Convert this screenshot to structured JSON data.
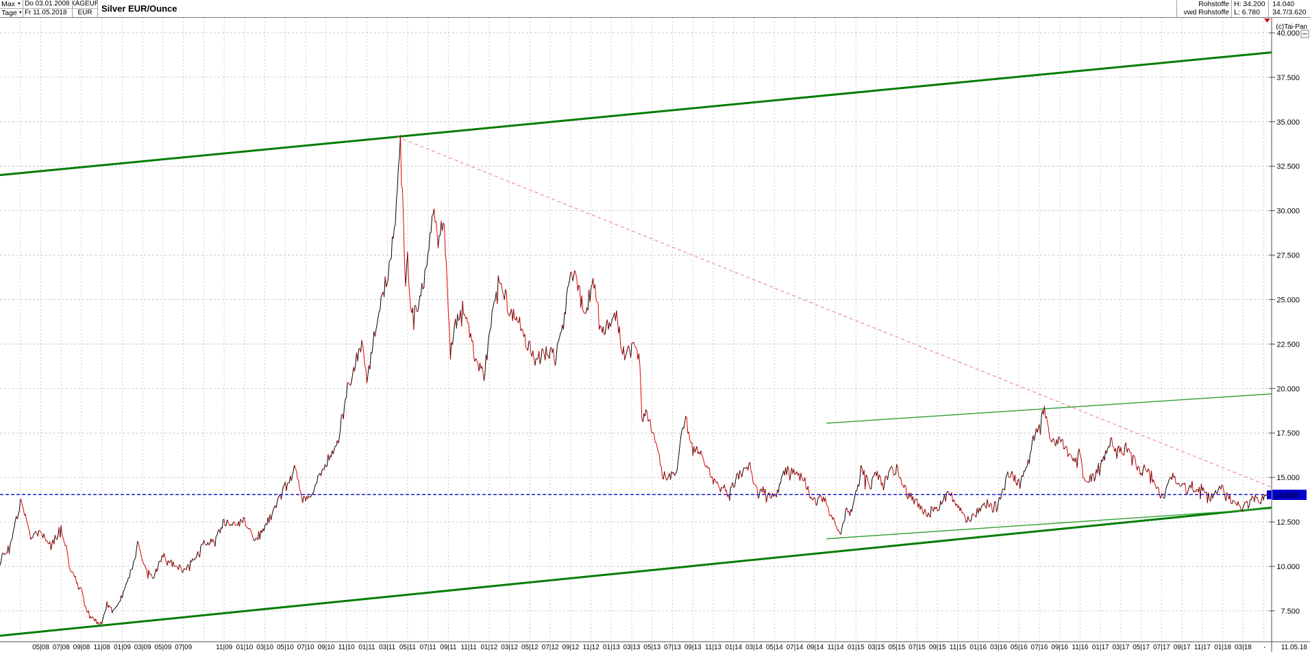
{
  "header": {
    "left": {
      "range_dropdown": "Max",
      "period_dropdown": "Tage",
      "date_from": "Do 03.01.2008",
      "date_to": "Fr 11.05.2018",
      "symbol": "XAGEUR",
      "currency": "EUR",
      "title": "Silver EUR/Ounce"
    },
    "right": {
      "category": "Rohstoffe",
      "source": "vwd Rohstoffe",
      "high_label": "H: 34.200",
      "low_label": "L: 6.780",
      "last": "14.040",
      "range_summary": "34.7/3.620"
    }
  },
  "icons": {
    "dropdown_arrow": "▼"
  },
  "axis_area": {
    "copyright_label": "(c)Tai-Pan",
    "price_badge": "14.040",
    "separator_label": "-",
    "end_date_label": "11.05.18",
    "badge_color": "#0000cc"
  },
  "colors": {
    "grid": "#c9c9c9",
    "axis": "#4d4d4d",
    "price_up": "#000000",
    "price_down": "#dd0000",
    "channel": "#007c00",
    "inner_line": "#2f9e2f",
    "downtrend": "#f29c9c",
    "last_price": "#0000cc",
    "marker_red": "#cc1111"
  },
  "chart_data": {
    "type": "line",
    "title": "Silver EUR/Ounce",
    "symbol": "XAGEUR",
    "currency": "EUR",
    "x_range": [
      "03.01.2008",
      "11.05.2018"
    ],
    "high": 34.2,
    "low": 6.78,
    "last": 14.04,
    "grid": {
      "x_every_months": 2,
      "y_every": 2.5,
      "style": "dashed"
    },
    "ylim_visible": [
      5.9,
      40.9
    ],
    "y_ticks": [
      {
        "label": "40.000",
        "value": 40.0
      },
      {
        "label": "37.500",
        "value": 37.5
      },
      {
        "label": "35.000",
        "value": 35.0
      },
      {
        "label": "32.500",
        "value": 32.5
      },
      {
        "label": "30.000",
        "value": 30.0
      },
      {
        "label": "27.500",
        "value": 27.5
      },
      {
        "label": "25.000",
        "value": 25.0
      },
      {
        "label": "22.500",
        "value": 22.5
      },
      {
        "label": "20.000",
        "value": 20.0
      },
      {
        "label": "17.500",
        "value": 17.5
      },
      {
        "label": "15.000",
        "value": 15.0
      },
      {
        "label": "12.500",
        "value": 12.5
      },
      {
        "label": "10.000",
        "value": 10.0
      },
      {
        "label": "7.500",
        "value": 7.5
      }
    ],
    "x_ticks": [
      {
        "label": "05|08",
        "month": 4
      },
      {
        "label": "07|08",
        "month": 6
      },
      {
        "label": "09|08",
        "month": 8
      },
      {
        "label": "11|08",
        "month": 10
      },
      {
        "label": "01|09",
        "month": 12
      },
      {
        "label": "03|09",
        "month": 14
      },
      {
        "label": "05|09",
        "month": 16
      },
      {
        "label": "07|09",
        "month": 18
      },
      {
        "label": "11|09",
        "month": 22
      },
      {
        "label": "01|10",
        "month": 24
      },
      {
        "label": "03|10",
        "month": 26
      },
      {
        "label": "05|10",
        "month": 28
      },
      {
        "label": "07|10",
        "month": 30
      },
      {
        "label": "09|10",
        "month": 32
      },
      {
        "label": "11|10",
        "month": 34
      },
      {
        "label": "01|11",
        "month": 36
      },
      {
        "label": "03|11",
        "month": 38
      },
      {
        "label": "05|11",
        "month": 40
      },
      {
        "label": "07|11",
        "month": 42
      },
      {
        "label": "09|11",
        "month": 44
      },
      {
        "label": "11|11",
        "month": 46
      },
      {
        "label": "01|12",
        "month": 48
      },
      {
        "label": "03|12",
        "month": 50
      },
      {
        "label": "05|12",
        "month": 52
      },
      {
        "label": "07|12",
        "month": 54
      },
      {
        "label": "09|12",
        "month": 56
      },
      {
        "label": "11|12",
        "month": 58
      },
      {
        "label": "01|13",
        "month": 60
      },
      {
        "label": "03|13",
        "month": 62
      },
      {
        "label": "05|13",
        "month": 64
      },
      {
        "label": "07|13",
        "month": 66
      },
      {
        "label": "09|13",
        "month": 68
      },
      {
        "label": "11|13",
        "month": 70
      },
      {
        "label": "01|14",
        "month": 72
      },
      {
        "label": "03|14",
        "month": 74
      },
      {
        "label": "05|14",
        "month": 76
      },
      {
        "label": "07|14",
        "month": 78
      },
      {
        "label": "09|14",
        "month": 80
      },
      {
        "label": "11|14",
        "month": 82
      },
      {
        "label": "01|15",
        "month": 84
      },
      {
        "label": "03|15",
        "month": 86
      },
      {
        "label": "05|15",
        "month": 88
      },
      {
        "label": "07|15",
        "month": 90
      },
      {
        "label": "09|15",
        "month": 92
      },
      {
        "label": "11|15",
        "month": 94
      },
      {
        "label": "01|16",
        "month": 96
      },
      {
        "label": "03|16",
        "month": 98
      },
      {
        "label": "05|16",
        "month": 100
      },
      {
        "label": "07|16",
        "month": 102
      },
      {
        "label": "09|16",
        "month": 104
      },
      {
        "label": "11|16",
        "month": 106
      },
      {
        "label": "01|17",
        "month": 108
      },
      {
        "label": "03|17",
        "month": 110
      },
      {
        "label": "05|17",
        "month": 112
      },
      {
        "label": "07|17",
        "month": 114
      },
      {
        "label": "09|17",
        "month": 116
      },
      {
        "label": "11|17",
        "month": 118
      },
      {
        "label": "01|18",
        "month": 120
      },
      {
        "label": "03|18",
        "month": 122
      }
    ],
    "series": {
      "name": "XAGEUR daily (EUR/oz) - monthly keypoints, months since Jan 2008",
      "keypoints": [
        [
          0,
          10.3
        ],
        [
          1,
          11.2
        ],
        [
          2,
          13.6
        ],
        [
          2.3,
          13.2
        ],
        [
          3,
          11.6
        ],
        [
          4,
          11.9
        ],
        [
          5,
          11.1
        ],
        [
          6,
          12.2
        ],
        [
          6.5,
          11.0
        ],
        [
          7,
          9.6
        ],
        [
          8,
          8.8
        ],
        [
          8.5,
          7.6
        ],
        [
          9,
          7.1
        ],
        [
          9.5,
          6.9
        ],
        [
          10,
          6.8
        ],
        [
          10.5,
          7.9
        ],
        [
          11,
          7.5
        ],
        [
          12,
          8.3
        ],
        [
          13,
          10.0
        ],
        [
          13.5,
          11.3
        ],
        [
          14,
          10.3
        ],
        [
          15,
          9.3
        ],
        [
          16,
          10.6
        ],
        [
          17,
          10.1
        ],
        [
          18,
          9.8
        ],
        [
          19,
          10.4
        ],
        [
          20,
          11.3
        ],
        [
          21,
          11.4
        ],
        [
          22,
          12.5
        ],
        [
          23,
          12.3
        ],
        [
          24,
          12.6
        ],
        [
          25,
          11.4
        ],
        [
          26,
          12.3
        ],
        [
          27,
          13.2
        ],
        [
          28,
          14.6
        ],
        [
          29,
          15.5
        ],
        [
          29.5,
          14.0
        ],
        [
          30,
          13.6
        ],
        [
          31,
          14.7
        ],
        [
          32,
          15.9
        ],
        [
          33,
          16.5
        ],
        [
          34,
          19.8
        ],
        [
          35,
          21.8
        ],
        [
          35.5,
          22.5
        ],
        [
          36,
          20.5
        ],
        [
          37,
          23.8
        ],
        [
          38,
          26.3
        ],
        [
          38.5,
          28.0
        ],
        [
          39,
          30.8
        ],
        [
          39.3,
          34.2
        ],
        [
          39.5,
          31.0
        ],
        [
          39.8,
          26.0
        ],
        [
          40,
          27.5
        ],
        [
          40.3,
          24.6
        ],
        [
          41,
          24.3
        ],
        [
          41.5,
          25.8
        ],
        [
          42,
          27.6
        ],
        [
          42.5,
          30.2
        ],
        [
          43,
          28.6
        ],
        [
          43.5,
          29.6
        ],
        [
          43.8,
          27.0
        ],
        [
          44.2,
          21.9
        ],
        [
          44.5,
          23.2
        ],
        [
          45,
          23.9
        ],
        [
          45.5,
          24.6
        ],
        [
          46,
          23.3
        ],
        [
          46.5,
          22.0
        ],
        [
          47,
          21.2
        ],
        [
          47.5,
          20.8
        ],
        [
          48,
          22.6
        ],
        [
          48.5,
          24.8
        ],
        [
          49,
          26.2
        ],
        [
          49.5,
          25.4
        ],
        [
          50,
          24.3
        ],
        [
          51,
          23.8
        ],
        [
          51.5,
          22.8
        ],
        [
          52,
          22.4
        ],
        [
          52.5,
          21.6
        ],
        [
          53,
          21.7
        ],
        [
          54,
          22.3
        ],
        [
          54.5,
          21.8
        ],
        [
          55,
          23.2
        ],
        [
          55.5,
          24.6
        ],
        [
          56,
          26.7
        ],
        [
          56.5,
          26.0
        ],
        [
          57,
          25.1
        ],
        [
          57.5,
          24.3
        ],
        [
          58,
          25.9
        ],
        [
          58.5,
          25.4
        ],
        [
          59,
          23.3
        ],
        [
          59.5,
          23.6
        ],
        [
          60,
          23.8
        ],
        [
          60.5,
          24.2
        ],
        [
          61,
          22.3
        ],
        [
          61.5,
          21.8
        ],
        [
          62,
          22.5
        ],
        [
          62.7,
          21.9
        ],
        [
          63.1,
          18.3
        ],
        [
          63.5,
          18.6
        ],
        [
          64,
          17.6
        ],
        [
          64.5,
          17.0
        ],
        [
          65,
          15.2
        ],
        [
          65.5,
          14.9
        ],
        [
          66,
          15.2
        ],
        [
          66.5,
          15.5
        ],
        [
          67,
          17.9
        ],
        [
          67.3,
          18.4
        ],
        [
          68,
          16.4
        ],
        [
          68.5,
          16.6
        ],
        [
          69,
          16.3
        ],
        [
          69.5,
          15.4
        ],
        [
          70,
          14.9
        ],
        [
          71,
          14.4
        ],
        [
          71.5,
          14.1
        ],
        [
          72,
          14.7
        ],
        [
          73,
          15.6
        ],
        [
          73.5,
          15.9
        ],
        [
          74,
          14.7
        ],
        [
          74.5,
          14.4
        ],
        [
          75,
          14.2
        ],
        [
          75.5,
          13.9
        ],
        [
          76,
          14.0
        ],
        [
          76.5,
          14.6
        ],
        [
          77,
          15.5
        ],
        [
          77.5,
          15.3
        ],
        [
          78,
          15.4
        ],
        [
          78.5,
          15.0
        ],
        [
          79,
          14.9
        ],
        [
          79.5,
          14.0
        ],
        [
          80,
          13.6
        ],
        [
          80.5,
          13.9
        ],
        [
          81,
          13.8
        ],
        [
          81.5,
          12.9
        ],
        [
          82,
          12.5
        ],
        [
          82.5,
          11.7
        ],
        [
          83,
          13.1
        ],
        [
          83.5,
          13.0
        ],
        [
          84,
          14.4
        ],
        [
          84.5,
          15.5
        ],
        [
          85,
          14.9
        ],
        [
          85.5,
          14.6
        ],
        [
          86,
          15.2
        ],
        [
          86.5,
          14.8
        ],
        [
          87,
          15.0
        ],
        [
          87.5,
          15.4
        ],
        [
          88,
          15.5
        ],
        [
          88.5,
          14.7
        ],
        [
          89,
          14.1
        ],
        [
          89.5,
          13.8
        ],
        [
          90,
          13.6
        ],
        [
          90.5,
          13.2
        ],
        [
          91,
          12.9
        ],
        [
          91.5,
          13.3
        ],
        [
          92,
          13.2
        ],
        [
          92.5,
          13.6
        ],
        [
          93,
          14.2
        ],
        [
          93.5,
          13.8
        ],
        [
          94,
          13.3
        ],
        [
          94.5,
          12.9
        ],
        [
          95,
          12.6
        ],
        [
          95.5,
          12.8
        ],
        [
          96,
          13.1
        ],
        [
          96.5,
          13.4
        ],
        [
          97,
          13.6
        ],
        [
          97.5,
          13.3
        ],
        [
          98,
          13.6
        ],
        [
          98.5,
          14.3
        ],
        [
          99,
          15.3
        ],
        [
          99.5,
          15.0
        ],
        [
          100,
          14.7
        ],
        [
          100.5,
          15.3
        ],
        [
          101,
          16.0
        ],
        [
          101.5,
          17.3
        ],
        [
          102,
          17.9
        ],
        [
          102.5,
          18.8
        ],
        [
          103,
          17.3
        ],
        [
          103.5,
          16.9
        ],
        [
          104,
          17.2
        ],
        [
          104.5,
          16.8
        ],
        [
          105,
          16.2
        ],
        [
          105.5,
          15.9
        ],
        [
          106,
          16.4
        ],
        [
          106.3,
          15.1
        ],
        [
          107,
          14.9
        ],
        [
          107.5,
          15.1
        ],
        [
          108,
          15.8
        ],
        [
          108.5,
          16.3
        ],
        [
          109,
          17.1
        ],
        [
          109.5,
          16.6
        ],
        [
          110,
          16.4
        ],
        [
          110.5,
          16.8
        ],
        [
          111,
          16.3
        ],
        [
          111.5,
          15.8
        ],
        [
          112,
          15.3
        ],
        [
          112.5,
          15.6
        ],
        [
          113,
          15.1
        ],
        [
          113.5,
          14.5
        ],
        [
          114,
          13.9
        ],
        [
          114.5,
          14.3
        ],
        [
          115,
          15.1
        ],
        [
          115.5,
          14.9
        ],
        [
          116,
          14.6
        ],
        [
          116.5,
          14.3
        ],
        [
          117,
          14.6
        ],
        [
          117.5,
          14.3
        ],
        [
          118,
          14.4
        ],
        [
          118.5,
          14.0
        ],
        [
          119,
          13.8
        ],
        [
          119.5,
          14.3
        ],
        [
          120,
          14.4
        ],
        [
          120.5,
          13.9
        ],
        [
          121,
          13.6
        ],
        [
          121.5,
          13.4
        ],
        [
          122,
          13.3
        ],
        [
          122.5,
          13.6
        ],
        [
          123,
          13.9
        ],
        [
          123.5,
          13.6
        ],
        [
          124,
          13.8
        ],
        [
          124.3,
          14.04
        ]
      ]
    },
    "trendlines": [
      {
        "name": "channel-top",
        "color": "#007c00",
        "width": 3,
        "dash": null,
        "from": [
          0,
          32.0
        ],
        "to": [
          124.8,
          38.9
        ]
      },
      {
        "name": "channel-bottom",
        "color": "#007c00",
        "width": 3,
        "dash": null,
        "from": [
          0,
          6.1
        ],
        "to": [
          124.8,
          13.3
        ]
      },
      {
        "name": "inner-resistance",
        "color": "#2f9e2f",
        "width": 1.4,
        "dash": null,
        "from": [
          81.1,
          18.05
        ],
        "to": [
          124.8,
          19.7
        ]
      },
      {
        "name": "inner-support",
        "color": "#2f9e2f",
        "width": 1.4,
        "dash": null,
        "from": [
          81.1,
          11.55
        ],
        "to": [
          124.8,
          13.25
        ]
      },
      {
        "name": "downtrend-from-peak",
        "color": "#f29c9c",
        "width": 1.4,
        "dash": "5,4",
        "from": [
          39.0,
          34.15
        ],
        "to": [
          124.8,
          14.45
        ]
      },
      {
        "name": "last-price-line",
        "color": "#0000cc",
        "width": 1.4,
        "dash": "5,3",
        "from": [
          0,
          14.04
        ],
        "to": [
          124.8,
          14.04
        ]
      }
    ],
    "legend": null
  }
}
